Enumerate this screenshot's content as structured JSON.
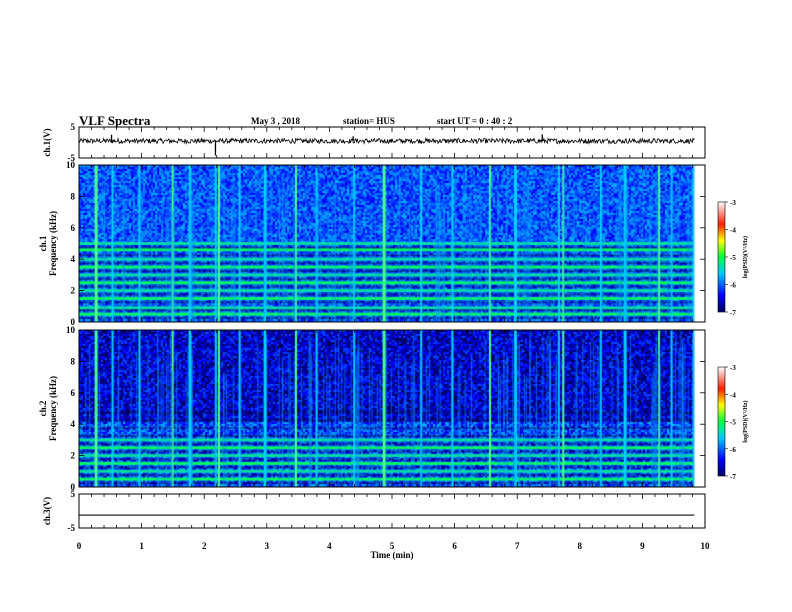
{
  "header": {
    "title": "VLF Spectra",
    "date": "May 3 , 2018",
    "station": "station= HUS",
    "start": "start UT = 0 : 40 : 2"
  },
  "chart_data": [
    {
      "type": "line",
      "name": "ch1-waveform",
      "ylabel": "ch.1(V)",
      "ylim": [
        -5,
        5
      ],
      "y_ticks": [
        "5",
        "-5"
      ],
      "baseline_V": 0.5,
      "noise_amplitude_V": 0.8,
      "spikes": [
        {
          "t_min": 0.52,
          "v": 2.5
        },
        {
          "t_min": 2.18,
          "v": -4.2
        },
        {
          "t_min": 4.38,
          "v": 2.0
        },
        {
          "t_min": 7.4,
          "v": 2.6
        }
      ]
    },
    {
      "type": "heatmap",
      "name": "ch1-spectrogram",
      "ylabel": "ch.1\nFrequency (kHz)",
      "ylim": [
        0,
        10
      ],
      "y_ticks": [
        "0",
        "2",
        "4",
        "6",
        "8",
        "10"
      ],
      "colorbar": {
        "label": "log(PSD)(V²/Hz)",
        "min": -7,
        "max": -3,
        "ticks": [
          "-3",
          "-4",
          "-5",
          "-6",
          "-7"
        ]
      },
      "bands_kHz": [
        0.5,
        0.9,
        1.5,
        2.0,
        2.5,
        3.0,
        3.5,
        4.0,
        4.6,
        5.0
      ],
      "background_level": "medium",
      "sferic_times_min": [
        0.25,
        0.52,
        0.95,
        1.48,
        1.75,
        2.17,
        2.22,
        2.55,
        2.95,
        3.45,
        3.78,
        4.38,
        4.85,
        5.45,
        5.95,
        6.55,
        6.95,
        7.65,
        7.72,
        8.32,
        8.7,
        9.25,
        9.45,
        9.8
      ]
    },
    {
      "type": "heatmap",
      "name": "ch2-spectrogram",
      "ylabel": "ch.2\nFrequency (kHz)",
      "ylim": [
        0,
        10
      ],
      "y_ticks": [
        "0",
        "2",
        "4",
        "6",
        "8",
        "10"
      ],
      "colorbar": {
        "label": "log(PSD)(V²/Hz)",
        "min": -7,
        "max": -3,
        "ticks": [
          "-3",
          "-4",
          "-5",
          "-6",
          "-7"
        ]
      },
      "bands_kHz": [
        0.5,
        1.0,
        1.5,
        2.0,
        2.5,
        3.0
      ],
      "background_level": "low",
      "sferic_times_min": [
        0.25,
        0.52,
        0.95,
        1.48,
        1.75,
        2.17,
        2.22,
        2.55,
        2.95,
        3.45,
        3.78,
        4.38,
        4.85,
        5.45,
        5.95,
        6.55,
        6.95,
        7.65,
        7.72,
        8.32,
        8.7,
        9.25,
        9.45,
        9.8
      ]
    },
    {
      "type": "line",
      "name": "ch3-waveform",
      "ylabel": "ch.3(V)",
      "ylim": [
        -5,
        5
      ],
      "y_ticks": [
        "5",
        "-5"
      ],
      "baseline_V": -1.2,
      "noise_amplitude_V": 0
    }
  ],
  "x_axis": {
    "label": "Time (min)",
    "range": [
      0,
      10
    ],
    "ticks": [
      "0",
      "1",
      "2",
      "3",
      "4",
      "5",
      "6",
      "7",
      "8",
      "9",
      "10"
    ],
    "data_end_min": 9.83
  }
}
